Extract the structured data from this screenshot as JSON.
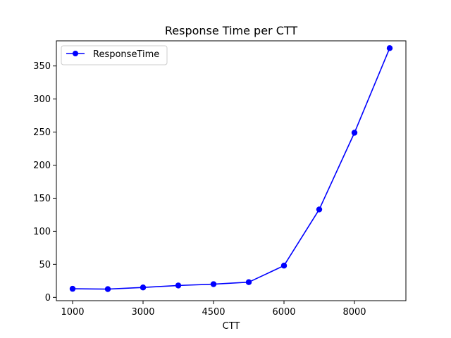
{
  "chart_data": {
    "type": "line",
    "title": "Response Time per CTT",
    "xlabel": "CTT",
    "ylabel": "",
    "categories": [
      "1000",
      "",
      "3000",
      "",
      "4500",
      "",
      "6000",
      "",
      "8000",
      ""
    ],
    "x_tick_labels": [
      "1000",
      "3000",
      "4500",
      "6000",
      "8000"
    ],
    "y_ticks": [
      0,
      50,
      100,
      150,
      200,
      250,
      300,
      350
    ],
    "ylim": [
      -5,
      388
    ],
    "grid": false,
    "legend_position": "top-left",
    "series": [
      {
        "name": "ResponseTime",
        "color": "#0000ff",
        "marker": "circle",
        "values": [
          13,
          12.5,
          15,
          18,
          20,
          23,
          48,
          133,
          249,
          377
        ]
      }
    ]
  }
}
